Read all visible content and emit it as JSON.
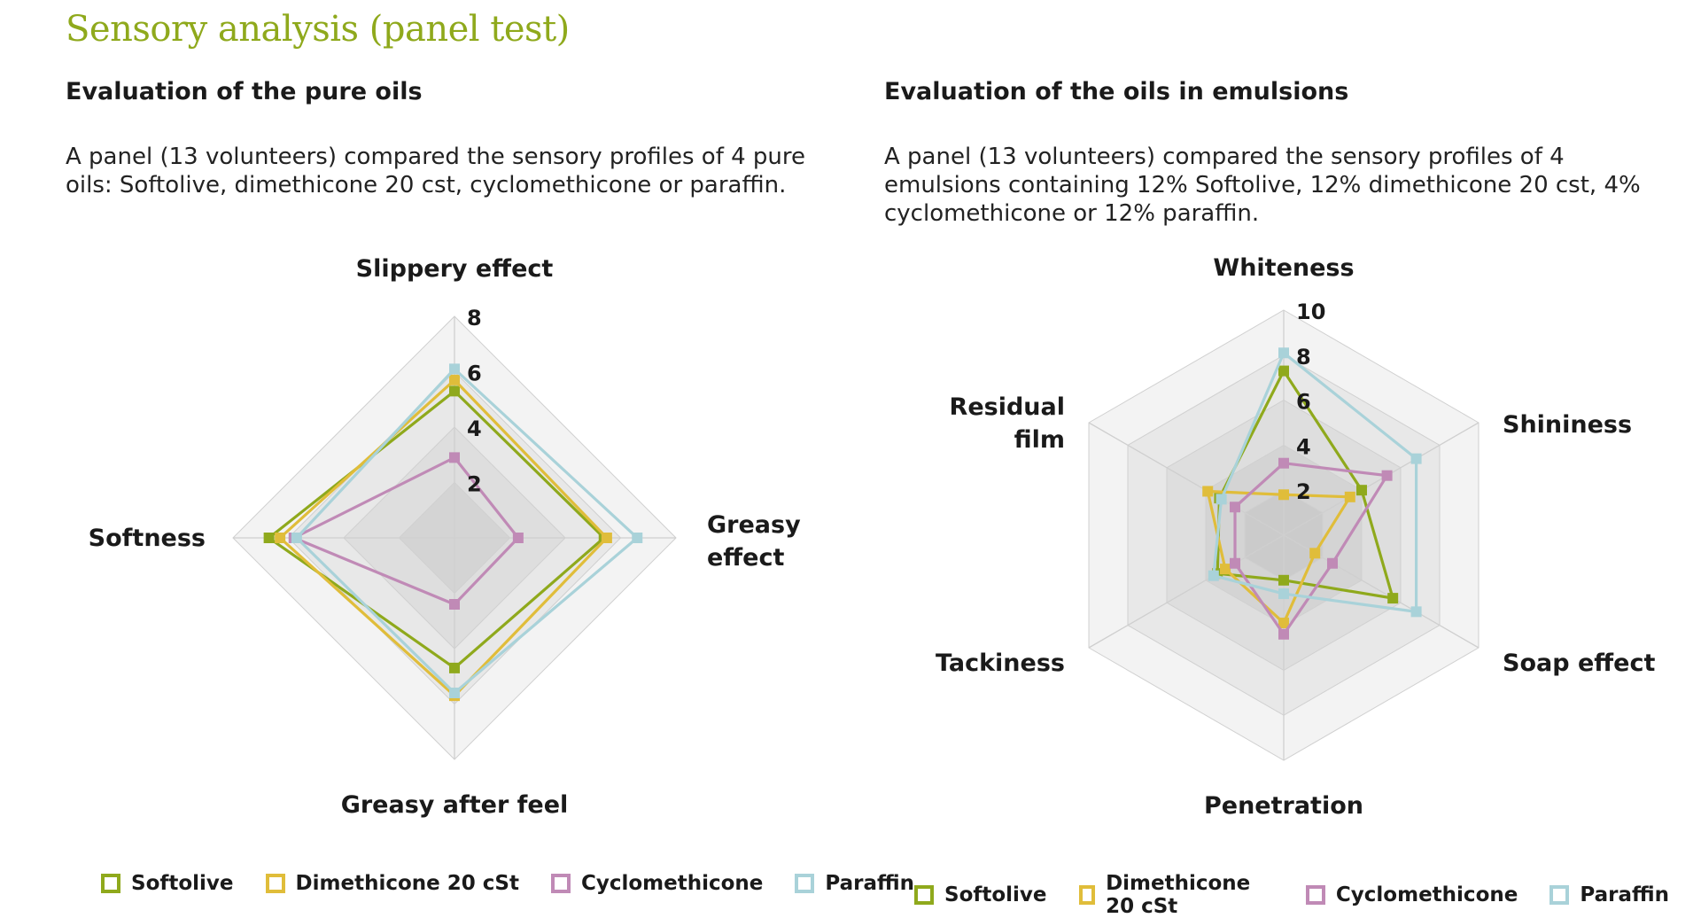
{
  "page": {
    "title": "Sensory analysis (panel test)"
  },
  "sections": [
    {
      "heading": "Evaluation of the pure oils",
      "description": "A panel (13 volunteers) compared the sensory profiles of 4 pure oils: Softolive, dimethicone 20 cst, cyclomethicone or paraffin."
    },
    {
      "heading": "Evaluation of the oils in emulsions",
      "description": "A panel (13 volunteers) compared the sensory profiles of 4 emulsions containing 12% Softolive, 12% dimethicone 20 cst, 4% cyclomethicone or 12% paraffin."
    }
  ],
  "chart_data": [
    {
      "type": "radar",
      "axes": [
        "Slippery effect",
        "Greasy effect",
        "Greasy after feel",
        "Softness"
      ],
      "axis_label_lines": [
        [
          "Slippery effect"
        ],
        [
          "Greasy",
          "effect"
        ],
        [
          "Greasy after feel"
        ],
        [
          "Softness"
        ]
      ],
      "rmax": 8,
      "ticks": [
        2,
        4,
        6,
        8
      ],
      "series": [
        {
          "name": "Softolive",
          "color": "#8fa91c",
          "values": [
            5.3,
            5.4,
            4.7,
            6.7
          ]
        },
        {
          "name": "Dimethicone 20 cSt",
          "color": "#e0bd3a",
          "values": [
            5.7,
            5.5,
            5.7,
            6.3
          ]
        },
        {
          "name": "Cyclomethicone",
          "color": "#c08ab6",
          "values": [
            2.9,
            2.3,
            2.4,
            5.8
          ]
        },
        {
          "name": "Paraffin",
          "color": "#a9d2d9",
          "values": [
            6.1,
            6.6,
            5.6,
            5.7
          ]
        }
      ],
      "legend_position": "bottom"
    },
    {
      "type": "radar",
      "axes": [
        "Whiteness",
        "Shininess",
        "Soap effect",
        "Penetration",
        "Tackiness",
        "Residual film"
      ],
      "axis_label_lines": [
        [
          "Whiteness"
        ],
        [
          "Shininess"
        ],
        [
          "Soap effect"
        ],
        [
          "Penetration"
        ],
        [
          "Tackiness"
        ],
        [
          "Residual",
          "film"
        ]
      ],
      "rmax": 10,
      "ticks": [
        2,
        4,
        6,
        8,
        10
      ],
      "series": [
        {
          "name": "Softolive",
          "color": "#8fa91c",
          "values": [
            7.3,
            4.0,
            5.6,
            2.0,
            3.4,
            3.3
          ]
        },
        {
          "name": "Dimethicone 20 cSt",
          "color": "#e0bd3a",
          "values": [
            1.8,
            3.4,
            1.6,
            3.9,
            3.0,
            3.9
          ]
        },
        {
          "name": "Cyclomethicone",
          "color": "#c08ab6",
          "values": [
            3.2,
            5.3,
            2.5,
            4.4,
            2.5,
            2.5
          ]
        },
        {
          "name": "Paraffin",
          "color": "#a9d2d9",
          "values": [
            8.1,
            6.8,
            6.8,
            2.6,
            3.6,
            3.2
          ]
        }
      ],
      "legend_position": "bottom"
    }
  ]
}
